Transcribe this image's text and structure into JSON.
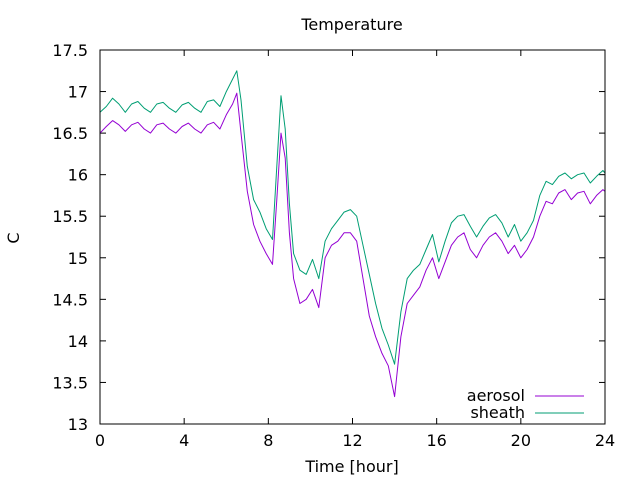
{
  "chart_data": {
    "type": "line",
    "title": "Temperature",
    "xlabel": "Time [hour]",
    "ylabel": "C",
    "xlim": [
      0,
      24
    ],
    "ylim": [
      13,
      17.5
    ],
    "grid": false,
    "legend_position": "bottom-right",
    "x_ticks": [
      0,
      4,
      8,
      12,
      16,
      20,
      24
    ],
    "x_tick_labels": [
      "0",
      "4",
      "8",
      "12",
      "16",
      "20",
      "24"
    ],
    "y_ticks": [
      13,
      13.5,
      14,
      14.5,
      15,
      15.5,
      16,
      16.5,
      17,
      17.5
    ],
    "y_tick_labels": [
      "13",
      "13.5",
      "14",
      "14.5",
      "15",
      "15.5",
      "16",
      "16.5",
      "17",
      "17.5"
    ],
    "series": [
      {
        "name": "aerosol",
        "color": "#9400d3",
        "points": [
          [
            0,
            16.5
          ],
          [
            0.3,
            16.58
          ],
          [
            0.6,
            16.65
          ],
          [
            0.9,
            16.6
          ],
          [
            1.2,
            16.52
          ],
          [
            1.5,
            16.6
          ],
          [
            1.8,
            16.63
          ],
          [
            2.1,
            16.55
          ],
          [
            2.4,
            16.5
          ],
          [
            2.7,
            16.6
          ],
          [
            3.0,
            16.62
          ],
          [
            3.3,
            16.55
          ],
          [
            3.6,
            16.5
          ],
          [
            3.9,
            16.58
          ],
          [
            4.2,
            16.62
          ],
          [
            4.5,
            16.55
          ],
          [
            4.8,
            16.5
          ],
          [
            5.1,
            16.6
          ],
          [
            5.4,
            16.63
          ],
          [
            5.7,
            16.55
          ],
          [
            6.0,
            16.72
          ],
          [
            6.3,
            16.85
          ],
          [
            6.5,
            16.98
          ],
          [
            6.7,
            16.5
          ],
          [
            7.0,
            15.8
          ],
          [
            7.3,
            15.4
          ],
          [
            7.6,
            15.2
          ],
          [
            7.9,
            15.05
          ],
          [
            8.2,
            14.92
          ],
          [
            8.4,
            15.7
          ],
          [
            8.6,
            16.5
          ],
          [
            8.8,
            16.2
          ],
          [
            9.0,
            15.3
          ],
          [
            9.2,
            14.75
          ],
          [
            9.5,
            14.45
          ],
          [
            9.8,
            14.5
          ],
          [
            10.1,
            14.62
          ],
          [
            10.4,
            14.4
          ],
          [
            10.7,
            15.0
          ],
          [
            11.0,
            15.15
          ],
          [
            11.3,
            15.2
          ],
          [
            11.6,
            15.3
          ],
          [
            11.9,
            15.3
          ],
          [
            12.2,
            15.2
          ],
          [
            12.5,
            14.75
          ],
          [
            12.8,
            14.3
          ],
          [
            13.1,
            14.05
          ],
          [
            13.4,
            13.85
          ],
          [
            13.7,
            13.7
          ],
          [
            14.0,
            13.33
          ],
          [
            14.3,
            14.05
          ],
          [
            14.6,
            14.45
          ],
          [
            14.9,
            14.55
          ],
          [
            15.2,
            14.65
          ],
          [
            15.5,
            14.85
          ],
          [
            15.8,
            15.0
          ],
          [
            16.1,
            14.75
          ],
          [
            16.4,
            14.95
          ],
          [
            16.7,
            15.15
          ],
          [
            17.0,
            15.25
          ],
          [
            17.3,
            15.3
          ],
          [
            17.6,
            15.1
          ],
          [
            17.9,
            15.0
          ],
          [
            18.2,
            15.15
          ],
          [
            18.5,
            15.25
          ],
          [
            18.8,
            15.3
          ],
          [
            19.1,
            15.2
          ],
          [
            19.4,
            15.05
          ],
          [
            19.7,
            15.15
          ],
          [
            20.0,
            15.0
          ],
          [
            20.3,
            15.1
          ],
          [
            20.6,
            15.25
          ],
          [
            20.9,
            15.5
          ],
          [
            21.2,
            15.68
          ],
          [
            21.5,
            15.65
          ],
          [
            21.8,
            15.78
          ],
          [
            22.1,
            15.82
          ],
          [
            22.4,
            15.7
          ],
          [
            22.7,
            15.78
          ],
          [
            23.0,
            15.8
          ],
          [
            23.3,
            15.65
          ],
          [
            23.6,
            15.75
          ],
          [
            23.9,
            15.82
          ],
          [
            24,
            15.8
          ]
        ]
      },
      {
        "name": "sheath",
        "color": "#009e73",
        "points": [
          [
            0,
            16.75
          ],
          [
            0.3,
            16.82
          ],
          [
            0.6,
            16.92
          ],
          [
            0.9,
            16.85
          ],
          [
            1.2,
            16.75
          ],
          [
            1.5,
            16.85
          ],
          [
            1.8,
            16.88
          ],
          [
            2.1,
            16.8
          ],
          [
            2.4,
            16.75
          ],
          [
            2.7,
            16.85
          ],
          [
            3.0,
            16.87
          ],
          [
            3.3,
            16.8
          ],
          [
            3.6,
            16.75
          ],
          [
            3.9,
            16.84
          ],
          [
            4.2,
            16.87
          ],
          [
            4.5,
            16.8
          ],
          [
            4.8,
            16.75
          ],
          [
            5.1,
            16.88
          ],
          [
            5.4,
            16.9
          ],
          [
            5.7,
            16.82
          ],
          [
            6.0,
            17.0
          ],
          [
            6.3,
            17.15
          ],
          [
            6.5,
            17.25
          ],
          [
            6.7,
            16.9
          ],
          [
            7.0,
            16.1
          ],
          [
            7.3,
            15.7
          ],
          [
            7.6,
            15.55
          ],
          [
            7.9,
            15.35
          ],
          [
            8.2,
            15.22
          ],
          [
            8.4,
            16.1
          ],
          [
            8.6,
            16.95
          ],
          [
            8.8,
            16.55
          ],
          [
            9.0,
            15.65
          ],
          [
            9.2,
            15.05
          ],
          [
            9.5,
            14.85
          ],
          [
            9.8,
            14.8
          ],
          [
            10.1,
            14.98
          ],
          [
            10.4,
            14.75
          ],
          [
            10.7,
            15.2
          ],
          [
            11.0,
            15.35
          ],
          [
            11.3,
            15.45
          ],
          [
            11.6,
            15.55
          ],
          [
            11.9,
            15.58
          ],
          [
            12.2,
            15.5
          ],
          [
            12.5,
            15.15
          ],
          [
            12.8,
            14.8
          ],
          [
            13.1,
            14.45
          ],
          [
            13.4,
            14.15
          ],
          [
            13.7,
            13.95
          ],
          [
            14.0,
            13.72
          ],
          [
            14.3,
            14.35
          ],
          [
            14.6,
            14.75
          ],
          [
            14.9,
            14.85
          ],
          [
            15.2,
            14.92
          ],
          [
            15.5,
            15.1
          ],
          [
            15.8,
            15.28
          ],
          [
            16.1,
            14.95
          ],
          [
            16.4,
            15.2
          ],
          [
            16.7,
            15.42
          ],
          [
            17.0,
            15.5
          ],
          [
            17.3,
            15.52
          ],
          [
            17.6,
            15.38
          ],
          [
            17.9,
            15.25
          ],
          [
            18.2,
            15.38
          ],
          [
            18.5,
            15.48
          ],
          [
            18.8,
            15.52
          ],
          [
            19.1,
            15.42
          ],
          [
            19.4,
            15.25
          ],
          [
            19.7,
            15.4
          ],
          [
            20.0,
            15.2
          ],
          [
            20.3,
            15.3
          ],
          [
            20.6,
            15.45
          ],
          [
            20.9,
            15.75
          ],
          [
            21.2,
            15.92
          ],
          [
            21.5,
            15.88
          ],
          [
            21.8,
            15.98
          ],
          [
            22.1,
            16.02
          ],
          [
            22.4,
            15.95
          ],
          [
            22.7,
            16.0
          ],
          [
            23.0,
            16.02
          ],
          [
            23.3,
            15.9
          ],
          [
            23.6,
            15.98
          ],
          [
            23.9,
            16.05
          ],
          [
            24,
            16.02
          ]
        ]
      }
    ]
  }
}
